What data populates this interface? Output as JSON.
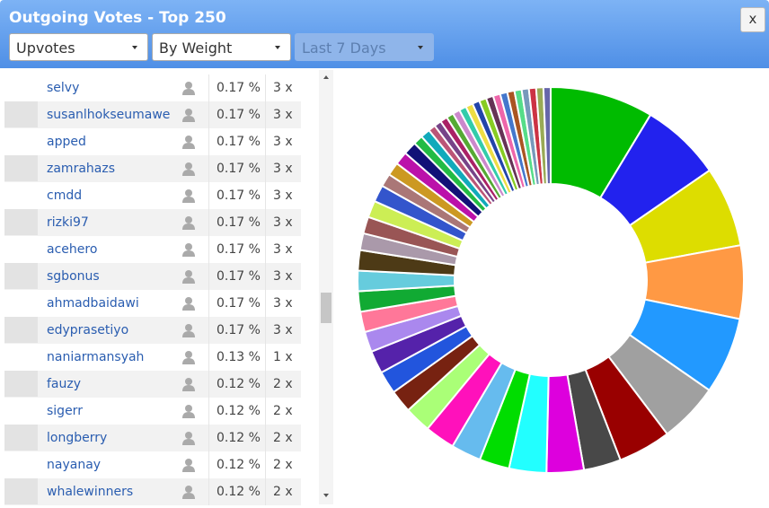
{
  "header": {
    "title": "Outgoing Votes - Top 250",
    "close": "x"
  },
  "filters": [
    "Upvotes",
    "By Weight",
    "Last 7 Days"
  ],
  "table": {
    "rows": [
      [
        "selvy",
        "0.17 %",
        "3 x"
      ],
      [
        "susanlhokseumawe",
        "0.17 %",
        "3 x"
      ],
      [
        "apped",
        "0.17 %",
        "3 x"
      ],
      [
        "zamrahazs",
        "0.17 %",
        "3 x"
      ],
      [
        "cmdd",
        "0.17 %",
        "3 x"
      ],
      [
        "rizki97",
        "0.17 %",
        "3 x"
      ],
      [
        "acehero",
        "0.17 %",
        "3 x"
      ],
      [
        "sgbonus",
        "0.17 %",
        "3 x"
      ],
      [
        "ahmadbaidawi",
        "0.17 %",
        "3 x"
      ],
      [
        "edyprasetiyo",
        "0.17 %",
        "3 x"
      ],
      [
        "naniarmansyah",
        "0.13 %",
        "1 x"
      ],
      [
        "fauzy",
        "0.12 %",
        "2 x"
      ],
      [
        "sigerr",
        "0.12 %",
        "2 x"
      ],
      [
        "longberry",
        "0.12 %",
        "2 x"
      ],
      [
        "nayanay",
        "0.12 %",
        "2 x"
      ],
      [
        "whalewinners",
        "0.12 %",
        "2 x"
      ]
    ]
  },
  "chart_data": {
    "type": "donut",
    "values": [
      8.6,
      6.7,
      6.7,
      6.1,
      6.4,
      5.0,
      4.4,
      3.1,
      3.1,
      3.1,
      2.5,
      2.5,
      2.5,
      2.2,
      1.9,
      1.9,
      1.9,
      1.7,
      1.7,
      1.7,
      1.7,
      1.7,
      1.4,
      1.4,
      1.4,
      1.4,
      1.1,
      1.1,
      1.1,
      1.1,
      0.8,
      0.8,
      0.6,
      0.6,
      0.6,
      0.6,
      0.6,
      0.6,
      0.6,
      0.6,
      0.6,
      0.6,
      0.6,
      0.6,
      0.6,
      0.6,
      0.6,
      0.6,
      0.6,
      0.6
    ],
    "colors": [
      "#00bb00",
      "#2222ee",
      "#dddd00",
      "#ff9944",
      "#2299ff",
      "#a0a0a0",
      "#990000",
      "#484848",
      "#dd00dd",
      "#22ffff",
      "#00dd00",
      "#66bbee",
      "#ff11bb",
      "#aaff77",
      "#772211",
      "#2255dd",
      "#5522aa",
      "#aa88ee",
      "#ff7799",
      "#11aa33",
      "#66ccdd",
      "#4d3a16",
      "#aa99aa",
      "#995555",
      "#ccee55",
      "#3355cc",
      "#aa7777",
      "#cc9922",
      "#bb11aa",
      "#111177",
      "#22bb44",
      "#11aabb",
      "#bb5577",
      "#774488",
      "#aa2266",
      "#55aa33",
      "#cc88cc",
      "#33ccaa",
      "#eedd44",
      "#2244aa",
      "#88cc22",
      "#663355",
      "#ee66aa",
      "#4477cc",
      "#aa5522",
      "#55dd88",
      "#7799bb",
      "#cc3344",
      "#99aa55",
      "#6666aa"
    ]
  }
}
